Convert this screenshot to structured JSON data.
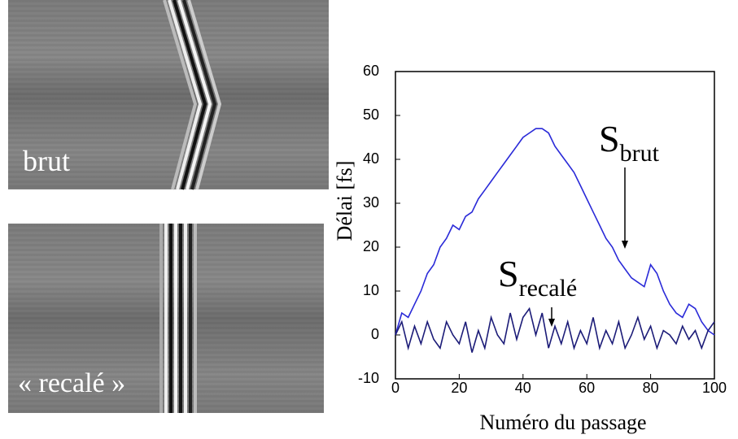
{
  "images": [
    {
      "label": "brut"
    },
    {
      "label": "« recalé »"
    }
  ],
  "chart_data": {
    "type": "line",
    "ylabel": "Délai [fs]",
    "xlabel": "Numéro du passage",
    "xlim": [
      0,
      100
    ],
    "xticks": [
      0,
      20,
      40,
      60,
      80,
      100
    ],
    "ylim": [
      -10,
      60
    ],
    "yticks": [
      -10,
      0,
      10,
      20,
      30,
      40,
      50,
      60
    ],
    "x": [
      0,
      2,
      4,
      6,
      8,
      10,
      12,
      14,
      16,
      18,
      20,
      22,
      24,
      26,
      28,
      30,
      32,
      34,
      36,
      38,
      40,
      42,
      44,
      46,
      48,
      50,
      52,
      54,
      56,
      58,
      60,
      62,
      64,
      66,
      68,
      70,
      72,
      74,
      76,
      78,
      80,
      82,
      84,
      86,
      88,
      90,
      92,
      94,
      96,
      98,
      100
    ],
    "series": [
      {
        "color": "#2a2ad8",
        "values": [
          0,
          5,
          4,
          7,
          10,
          14,
          16,
          20,
          22,
          25,
          24,
          27,
          28,
          31,
          33,
          35,
          37,
          39,
          41,
          43,
          45,
          46,
          47,
          47,
          46,
          43,
          41,
          39,
          37,
          34,
          31,
          28,
          25,
          22,
          20,
          17,
          15,
          13,
          12,
          11,
          16,
          14,
          10,
          7,
          5,
          4,
          7,
          6,
          3,
          1,
          0
        ]
      },
      {
        "color": "#1c1c78",
        "values": [
          0,
          3,
          -3,
          2,
          -2,
          3,
          -1,
          -3,
          3,
          0,
          -2,
          3,
          -4,
          1,
          -3,
          4,
          0,
          -2,
          5,
          -1,
          4,
          6,
          0,
          5,
          -3,
          2,
          -2,
          3,
          -3,
          1,
          -2,
          4,
          -3,
          1,
          -2,
          3,
          -3,
          0,
          4,
          -1,
          2,
          -3,
          1,
          0,
          -2,
          2,
          -1,
          1,
          -3,
          1,
          3
        ]
      }
    ],
    "annotations": [
      {
        "text": "S",
        "subscript": "brut"
      },
      {
        "text": "S",
        "subscript": "recalé"
      }
    ]
  }
}
